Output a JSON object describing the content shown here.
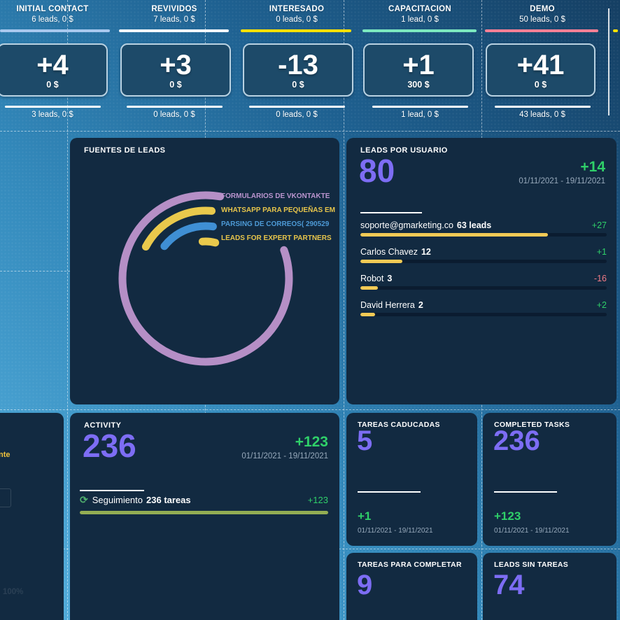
{
  "funnel": {
    "stages": [
      {
        "name": "INITIAL CONTACT",
        "summary": "6 leads, 0 $",
        "delta": "+4",
        "delta_amount": "0 $",
        "footer": "3 leads, 0 $",
        "color": "#a9c9ef"
      },
      {
        "name": "REVIVIDOS",
        "summary": "7 leads, 0 $",
        "delta": "+3",
        "delta_amount": "0 $",
        "footer": "0 leads, 0 $",
        "color": "#f4f8fc"
      },
      {
        "name": "INTERESADO",
        "summary": "0 leads, 0 $",
        "delta": "-13",
        "delta_amount": "0 $",
        "footer": "0 leads, 0 $",
        "color": "#ffe100"
      },
      {
        "name": "CAPACITACION",
        "summary": "1 lead, 0 $",
        "delta": "+1",
        "delta_amount": "300 $",
        "footer": "1 lead, 0 $",
        "color": "#7ce9c0"
      },
      {
        "name": "DEMO",
        "summary": "50 leads, 0 $",
        "delta": "+41",
        "delta_amount": "0 $",
        "footer": "43 leads, 0 $",
        "color": "#fa8096"
      }
    ]
  },
  "fuentes": {
    "title": "FUENTES DE LEADS",
    "legend": [
      {
        "label": "FORMULARIOS DE VKONTAKTE",
        "color": "#bb95cf"
      },
      {
        "label": "WHATSAPP PARA PEQUEÑAS EM",
        "color": "#e7c54b"
      },
      {
        "label": "PARSING DE CORREOS( 290529",
        "color": "#4d9ad6"
      },
      {
        "label": "LEADS FOR EXPERT PARTNERS",
        "color": "#e7c54b"
      }
    ],
    "arc_colors": {
      "ring1": "#b58fc6",
      "ring2": "#e9c94c",
      "ring3": "#3f8fd4",
      "ring4": "#e9c94c"
    }
  },
  "leads_por_usuario": {
    "title": "LEADS POR USUARIO",
    "total": "80",
    "delta": "+14",
    "date_range": "01/11/2021 - 19/11/2021",
    "users": [
      {
        "name": "soporte@gmarketing.co",
        "count": "63 leads",
        "delta": "+27",
        "bar_pct": 76
      },
      {
        "name": "Carlos Chavez",
        "count": "12",
        "delta": "+1",
        "bar_pct": 17
      },
      {
        "name": "Robot",
        "count": "3",
        "delta": "-16",
        "bar_pct": 7
      },
      {
        "name": "David Herrera",
        "count": "2",
        "delta": "+2",
        "bar_pct": 6
      }
    ]
  },
  "activity": {
    "title": "ACTIVITY",
    "total": "236",
    "delta": "+123",
    "date_range": "01/11/2021 - 19/11/2021",
    "task": {
      "icon": "refresh-icon",
      "label": "Seguimiento",
      "count": "236 tareas",
      "delta": "+123",
      "bar_pct": 100
    }
  },
  "tareas_caducadas": {
    "title": "TAREAS CADUCADAS",
    "total": "5",
    "delta": "+1",
    "date_range": "01/11/2021 - 19/11/2021"
  },
  "completed_tasks": {
    "title": "COMPLETED TASKS",
    "total": "236",
    "delta": "+123",
    "date_range": "01/11/2021 - 19/11/2021"
  },
  "tareas_para_completar": {
    "title": "TAREAS PARA COMPLETAR",
    "total": "9"
  },
  "leads_sin_tareas": {
    "title": "LEADS SIN TAREAS",
    "total": "74"
  },
  "left_partial": {
    "truncated_label": "nte",
    "percent_label": "100%"
  },
  "icons": {
    "refresh": "⟳"
  },
  "colors": {
    "accent_purple": "#7d6df4",
    "positive_green": "#2fd069",
    "negative_red": "#f07a85",
    "bar_yellow": "#f3ca55",
    "bar_green": "#93ad53"
  }
}
